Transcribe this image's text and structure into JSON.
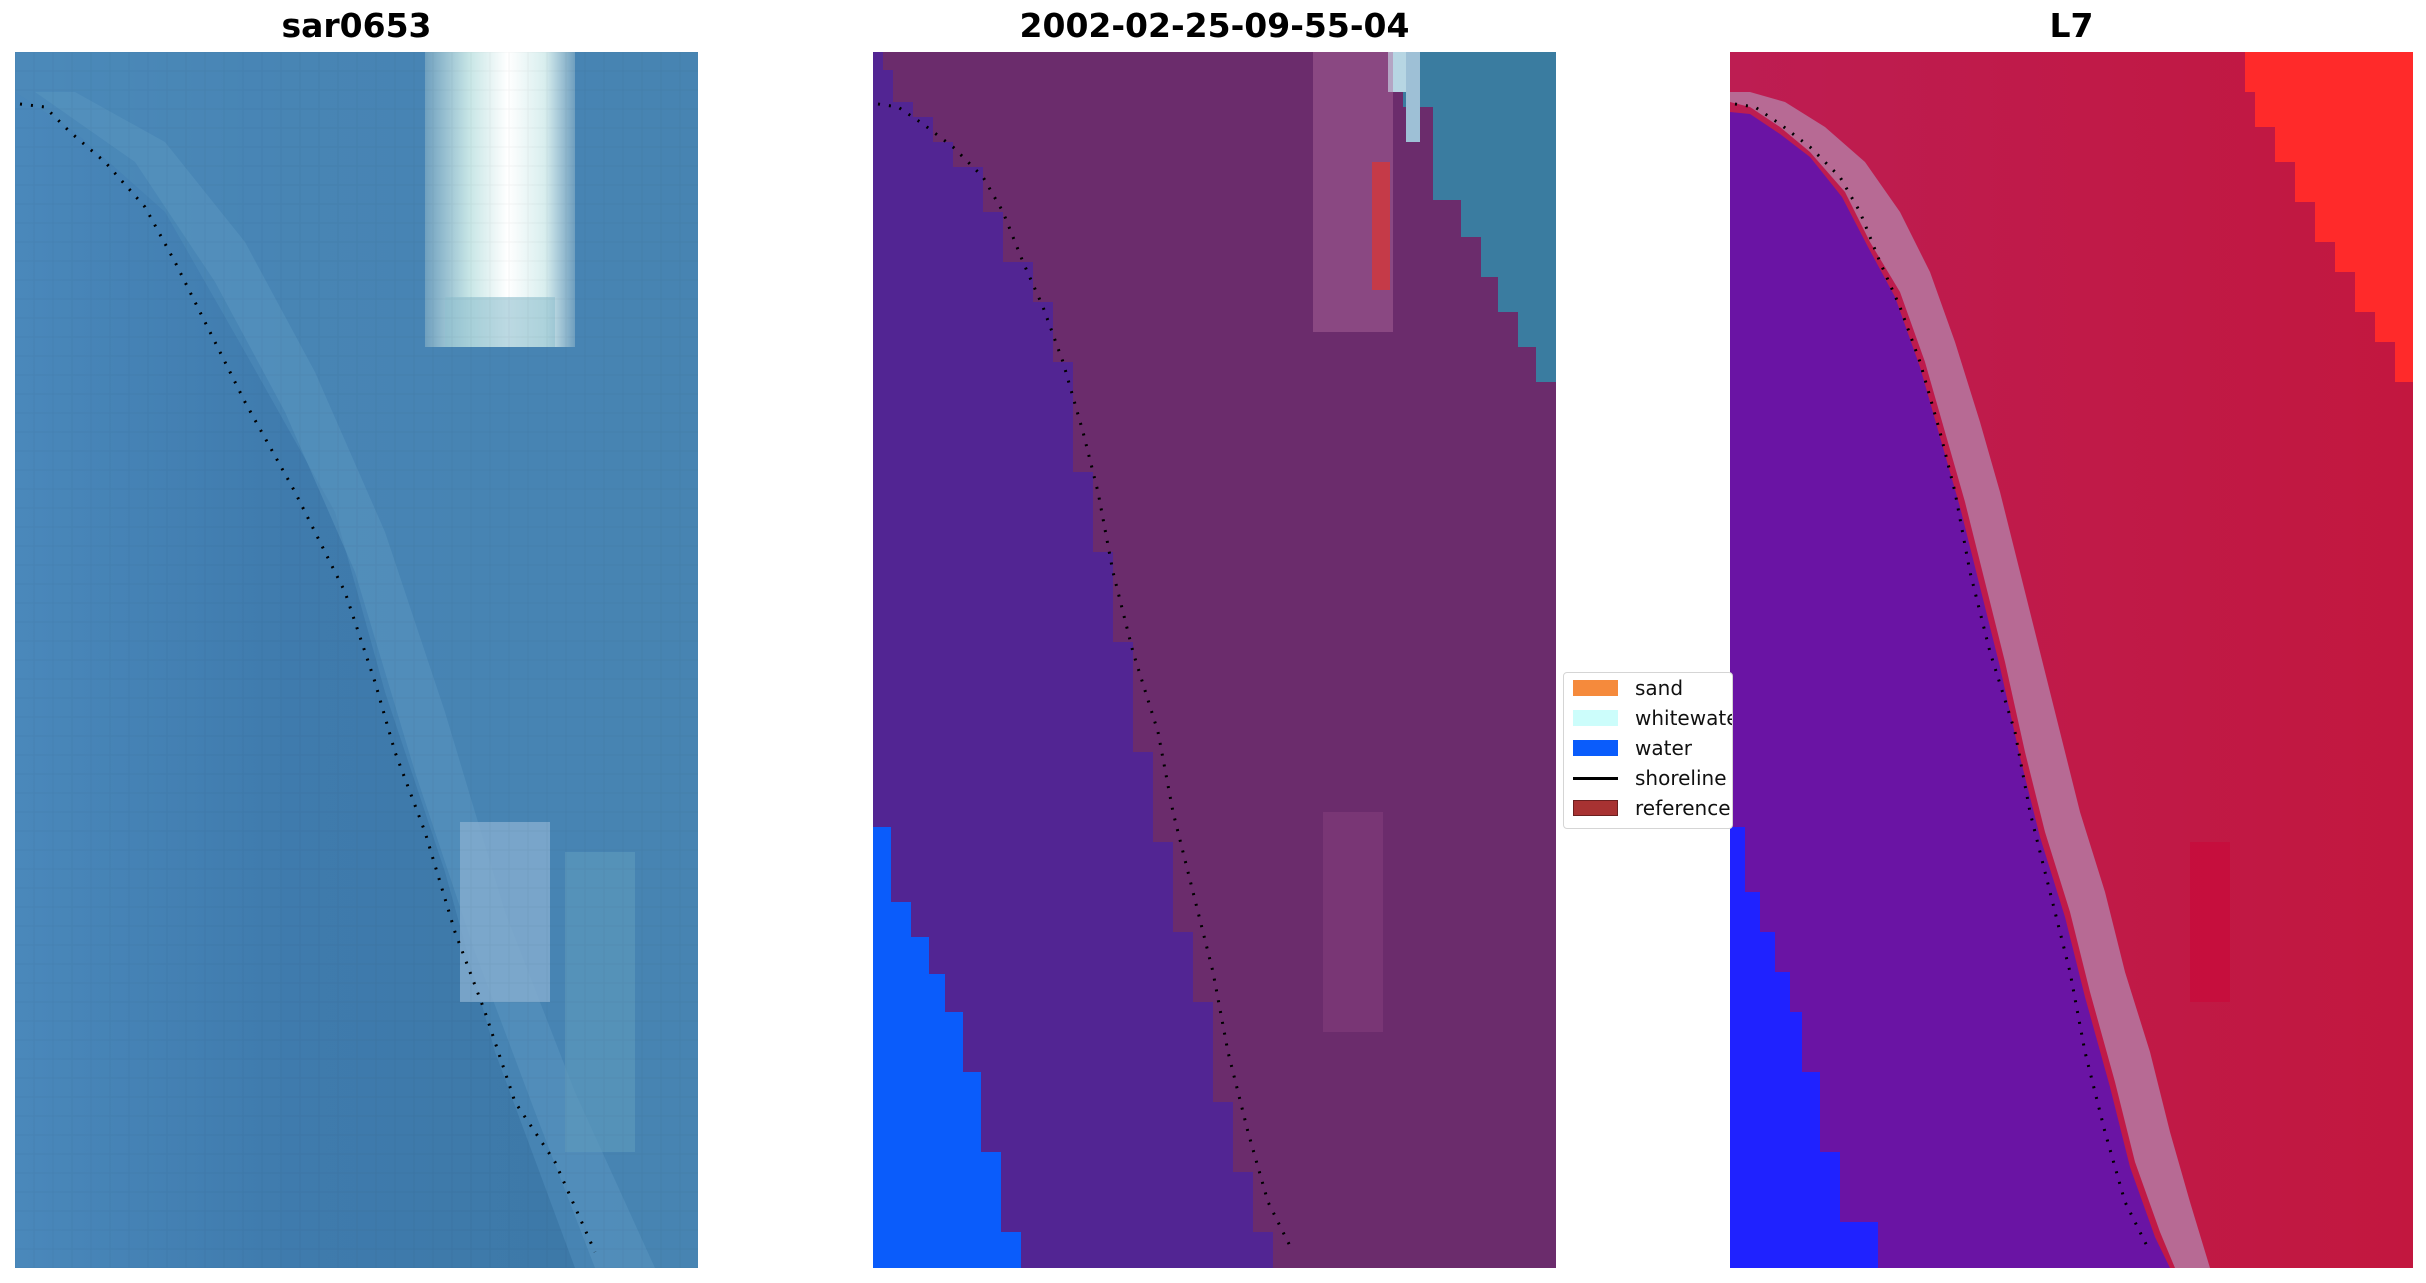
{
  "panels": [
    {
      "title": "sar0653"
    },
    {
      "title": "2002-02-25-09-55-04"
    },
    {
      "title": "L7"
    }
  ],
  "legend": {
    "items": [
      {
        "label": "sand",
        "color": "#f58a3c",
        "kind": "patch"
      },
      {
        "label": "whitewater",
        "color": "#ccfdfb",
        "kind": "patch"
      },
      {
        "label": "water",
        "color": "#0a5cfb",
        "kind": "patch"
      },
      {
        "label": "shoreline",
        "color": "#000000",
        "kind": "line"
      },
      {
        "label": "reference",
        "color": "#a83232",
        "kind": "patch"
      }
    ]
  },
  "colors": {
    "rgb_water": "#3f7cab",
    "rgb_sand": "#5b93bf",
    "rgb_whitewater": "#eef9f6",
    "class_sand_overlay": "#6b2c6c",
    "class_water_overlay": "#522593",
    "class_water": "#0a5cfb",
    "class_whitewater": "#9ec0d6",
    "class_reference": "#c53a48",
    "false_color_land": "#c01a44",
    "false_color_water": "#6a14a4",
    "false_color_deep": "#1f22ff",
    "false_color_bright": "#ff2a2a",
    "shoreline": "#000000"
  }
}
